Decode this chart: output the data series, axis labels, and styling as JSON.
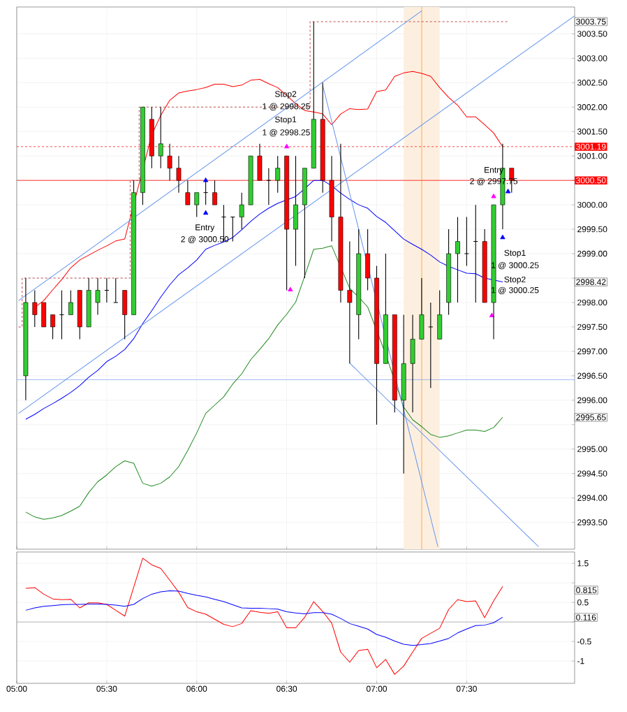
{
  "chart_data": [
    {
      "type": "candlestick",
      "tick_labels": "y",
      "grid": true,
      "xlim": [
        5.0,
        8.1
      ],
      "xticks": [
        {
          "value": 5.0,
          "label": null
        },
        {
          "value": 5.5,
          "label": null
        },
        {
          "value": 6.0,
          "label": null
        },
        {
          "value": 6.5,
          "label": null
        },
        {
          "value": 7.0,
          "label": null
        },
        {
          "value": 7.5,
          "label": null
        }
      ],
      "ylim": [
        2992.95,
        3004.05
      ],
      "yticks": [
        {
          "value": 2993.5,
          "label": "2993.50"
        },
        {
          "value": 2994.0,
          "label": "2994.00"
        },
        {
          "value": 2994.5,
          "label": "2994.50"
        },
        {
          "value": 2995.0,
          "label": "2995.00"
        },
        {
          "value": 2995.5,
          "label": null
        },
        {
          "value": 2996.0,
          "label": "2996.00"
        },
        {
          "value": 2996.5,
          "label": "2996.50"
        },
        {
          "value": 2997.0,
          "label": "2997.00"
        },
        {
          "value": 2997.5,
          "label": "2997.50"
        },
        {
          "value": 2998.0,
          "label": "2998.00"
        },
        {
          "value": 2998.5,
          "label": null
        },
        {
          "value": 2999.0,
          "label": "2999.00"
        },
        {
          "value": 2999.5,
          "label": "2999.50"
        },
        {
          "value": 3000.0,
          "label": "3000.00"
        },
        {
          "value": 3000.5,
          "label": null
        },
        {
          "value": 3001.0,
          "label": "3001.00"
        },
        {
          "value": 3001.5,
          "label": "3001.50"
        },
        {
          "value": 3002.0,
          "label": "3002.00"
        },
        {
          "value": 3002.5,
          "label": "3002.50"
        },
        {
          "value": 3003.0,
          "label": "3003.00"
        },
        {
          "value": 3003.5,
          "label": "3003.50"
        }
      ],
      "x": [
        5.05,
        5.1,
        5.15,
        5.2,
        5.25,
        5.3,
        5.35,
        5.4,
        5.45,
        5.5,
        5.55,
        5.6,
        5.65,
        5.7,
        5.75,
        5.8,
        5.85,
        5.9,
        5.95,
        6.0,
        6.05,
        6.1,
        6.15,
        6.2,
        6.25,
        6.3,
        6.35,
        6.4,
        6.45,
        6.5,
        6.55,
        6.6,
        6.65,
        6.7,
        6.75,
        6.8,
        6.85,
        6.9,
        6.95,
        7.0,
        7.05,
        7.1,
        7.15,
        7.2,
        7.25,
        7.3,
        7.35,
        7.4,
        7.45,
        7.5,
        7.55,
        7.6,
        7.65,
        7.7,
        7.75
      ],
      "ohlc": [
        [
          2996.5,
          2998.5,
          2996.0,
          2998.0
        ],
        [
          2998.0,
          2998.25,
          2997.5,
          2997.75
        ],
        [
          2998.0,
          2998.0,
          2997.5,
          2997.5
        ],
        [
          2997.75,
          2997.75,
          2997.25,
          2997.5
        ],
        [
          2997.75,
          2998.25,
          2997.25,
          2997.75
        ],
        [
          2997.75,
          2998.25,
          2997.75,
          2998.0
        ],
        [
          2998.25,
          2998.25,
          2997.25,
          2997.5
        ],
        [
          2997.5,
          2998.5,
          2997.5,
          2998.25
        ],
        [
          2998.0,
          2998.5,
          2997.75,
          2998.25
        ],
        [
          2998.25,
          2998.5,
          2998.0,
          2998.25
        ],
        [
          2998.0,
          2998.5,
          2998.0,
          2998.0
        ],
        [
          2998.25,
          2998.25,
          2997.25,
          2997.75
        ],
        [
          2997.75,
          3000.5,
          2997.75,
          3000.25
        ],
        [
          3000.25,
          3002.0,
          3000.0,
          3002.0
        ],
        [
          3001.75,
          3002.0,
          3000.75,
          3001.0
        ],
        [
          3001.0,
          3002.0,
          3000.75,
          3001.25
        ],
        [
          3001.0,
          3001.25,
          3000.5,
          3000.75
        ],
        [
          3000.75,
          3001.0,
          3000.25,
          3000.5
        ],
        [
          3000.25,
          3000.5,
          3000.0,
          3000.0
        ],
        [
          3000.0,
          3000.25,
          2999.75,
          3000.25
        ],
        [
          3000.25,
          3000.5,
          3000.0,
          3000.25
        ],
        [
          3000.25,
          3000.5,
          3000.0,
          3000.0
        ],
        [
          2999.75,
          3000.0,
          2999.25,
          2999.75
        ],
        [
          2999.75,
          2999.75,
          2999.25,
          2999.75
        ],
        [
          2999.75,
          3000.25,
          2999.5,
          3000.0
        ],
        [
          3000.0,
          3001.0,
          3000.0,
          3001.0
        ],
        [
          3001.0,
          3001.25,
          3000.5,
          3000.5
        ],
        [
          3000.5,
          3000.75,
          3000.0,
          3000.5
        ],
        [
          3000.5,
          3001.0,
          3000.25,
          3000.75
        ],
        [
          3001.0,
          3001.0,
          2998.25,
          2999.5
        ],
        [
          2999.5,
          3001.0,
          2998.75,
          3000.0
        ],
        [
          3000.0,
          3000.75,
          2998.5,
          3000.75
        ],
        [
          3000.75,
          3003.75,
          3000.75,
          3001.75
        ],
        [
          3001.75,
          3002.5,
          3000.25,
          3000.5
        ],
        [
          3000.5,
          3001.0,
          2999.25,
          2999.75
        ],
        [
          2999.75,
          3001.25,
          2998.0,
          2998.25
        ],
        [
          2998.25,
          2999.25,
          2996.75,
          2998.0
        ],
        [
          2997.75,
          2999.5,
          2997.25,
          2999.0
        ],
        [
          2999.0,
          2999.5,
          2998.25,
          2998.5
        ],
        [
          2998.5,
          2998.75,
          2995.5,
          2996.75
        ],
        [
          2996.75,
          2999.0,
          2996.75,
          2997.75
        ],
        [
          2997.75,
          2997.75,
          2995.75,
          2996.0
        ],
        [
          2996.0,
          2997.75,
          2994.5,
          2996.75
        ],
        [
          2996.75,
          2997.75,
          2995.75,
          2997.25
        ],
        [
          2997.25,
          2998.5,
          2997.25,
          2997.75
        ],
        [
          2997.5,
          2998.0,
          2996.25,
          2997.5
        ],
        [
          2997.25,
          2998.25,
          2997.25,
          2997.75
        ],
        [
          2998.0,
          2999.5,
          2997.75,
          2999.0
        ],
        [
          2999.0,
          2999.75,
          2998.0,
          2999.25
        ],
        [
          2999.0,
          2999.75,
          2998.75,
          2999.0
        ],
        [
          2999.25,
          3000.0,
          2998.0,
          2999.25
        ],
        [
          2999.25,
          2999.5,
          2998.0,
          2998.0
        ],
        [
          2998.0,
          3000.0,
          2997.25,
          3000.0
        ],
        [
          3000.0,
          3001.25,
          2999.5,
          3000.75
        ],
        [
          3000.75,
          3000.75,
          3000.25,
          3000.5
        ]
      ],
      "colors": [
        "#32cd32",
        "#ff0000",
        "#ff0000",
        "#ff0000",
        "#000000",
        "#32cd32",
        "#ff0000",
        "#32cd32",
        "#32cd32",
        "#000000",
        "#000000",
        "#ff0000",
        "#32cd32",
        "#32cd32",
        "#ff0000",
        "#32cd32",
        "#ff0000",
        "#ff0000",
        "#ff0000",
        "#32cd32",
        "#000000",
        "#ff0000",
        "#000000",
        "#000000",
        "#32cd32",
        "#32cd32",
        "#ff0000",
        "#000000",
        "#32cd32",
        "#ff0000",
        "#32cd32",
        "#32cd32",
        "#32cd32",
        "#ff0000",
        "#ff0000",
        "#ff0000",
        "#ff0000",
        "#32cd32",
        "#ff0000",
        "#ff0000",
        "#32cd32",
        "#ff0000",
        "#32cd32",
        "#32cd32",
        "#32cd32",
        "#000000",
        "#32cd32",
        "#32cd32",
        "#32cd32",
        "#000000",
        "#000000",
        "#ff0000",
        "#32cd32",
        "#32cd32",
        "#ff0000"
      ],
      "series": [
        {
          "type": "line",
          "color": "#ff0000",
          "x": [
            5.1,
            5.15,
            5.2,
            5.25,
            5.3,
            5.35,
            5.4,
            5.45,
            5.5,
            5.55,
            5.6,
            5.75,
            5.8,
            5.85,
            5.9,
            5.95,
            6.0,
            6.05,
            6.1,
            6.15,
            6.2,
            6.25,
            6.3,
            6.35,
            6.4,
            6.45,
            6.5,
            6.55,
            6.6,
            6.65,
            6.7,
            6.75,
            6.8,
            6.85,
            6.9,
            6.95,
            7.0,
            7.05,
            7.1,
            7.15,
            7.2,
            7.25,
            7.3,
            7.35,
            7.4,
            7.45,
            7.5,
            7.55,
            7.6,
            7.65,
            7.7
          ],
          "values": [
            2997.9,
            2998.04,
            2998.26,
            2998.47,
            2998.71,
            2998.87,
            2998.97,
            2999.07,
            2999.16,
            2999.26,
            2999.3,
            3001.43,
            3001.83,
            3002.14,
            3002.29,
            3002.33,
            3002.36,
            3002.4,
            3002.47,
            3002.47,
            3002.42,
            3002.45,
            3002.55,
            3002.57,
            3002.48,
            3002.4,
            3002.24,
            3002.07,
            3001.93,
            3001.9,
            3001.86,
            3001.64,
            3001.86,
            3001.97,
            3001.95,
            3001.96,
            3002.32,
            3002.35,
            3002.63,
            3002.7,
            3002.73,
            3002.69,
            3002.63,
            3002.4,
            3002.2,
            3002.04,
            3001.8,
            3001.8,
            3001.64,
            3001.47,
            3001.19
          ]
        },
        {
          "type": "line",
          "color": "#0000ff",
          "x": [
            5.05,
            5.1,
            5.15,
            5.2,
            5.25,
            5.3,
            5.35,
            5.4,
            5.45,
            5.5,
            5.55,
            5.6,
            5.65,
            5.7,
            5.75,
            5.8,
            5.85,
            5.9,
            5.95,
            6.0,
            6.05,
            6.1,
            6.15,
            6.2,
            6.25,
            6.3,
            6.35,
            6.4,
            6.45,
            6.5,
            6.55,
            6.6,
            6.65,
            6.7,
            6.75,
            6.8,
            6.85,
            6.9,
            6.95,
            7.0,
            7.05,
            7.1,
            7.15,
            7.2,
            7.25,
            7.3,
            7.35,
            7.4,
            7.45,
            7.5,
            7.55,
            7.6,
            7.7
          ],
          "values": [
            2995.61,
            2995.71,
            2995.83,
            2995.93,
            2996.04,
            2996.16,
            2996.3,
            2996.47,
            2996.61,
            2996.79,
            2996.9,
            2997.04,
            2997.26,
            2997.57,
            2997.83,
            2998.11,
            2998.36,
            2998.57,
            2998.71,
            2998.87,
            2999.09,
            2999.17,
            2999.24,
            2999.33,
            2999.49,
            2999.66,
            2999.81,
            2999.93,
            3000.03,
            3000.1,
            3000.17,
            3000.33,
            3000.5,
            3000.5,
            3000.39,
            3000.24,
            3000.11,
            3000.0,
            2999.93,
            2999.76,
            2999.64,
            2999.47,
            2999.3,
            2999.19,
            2999.09,
            2998.97,
            2998.83,
            2998.74,
            2998.67,
            2998.6,
            2998.59,
            2998.5,
            2998.42
          ]
        },
        {
          "type": "line",
          "color": "#228b22",
          "x": [
            5.05,
            5.1,
            5.15,
            5.2,
            5.25,
            5.3,
            5.35,
            5.4,
            5.45,
            5.5,
            5.55,
            5.6,
            5.65,
            5.7,
            5.75,
            5.8,
            5.85,
            5.9,
            5.95,
            6.0,
            6.05,
            6.1,
            6.15,
            6.2,
            6.25,
            6.3,
            6.35,
            6.4,
            6.45,
            6.5,
            6.55,
            6.6,
            6.65,
            6.7,
            6.75,
            6.85,
            6.9,
            6.95,
            7.05,
            7.15,
            7.2,
            7.25,
            7.3,
            7.35,
            7.4,
            7.45,
            7.5,
            7.55,
            7.6,
            7.65,
            7.7
          ],
          "values": [
            2993.71,
            2993.61,
            2993.56,
            2993.59,
            2993.64,
            2993.73,
            2993.83,
            2994.11,
            2994.33,
            2994.47,
            2994.64,
            2994.76,
            2994.71,
            2994.3,
            2994.24,
            2994.3,
            2994.43,
            2994.64,
            2994.97,
            2995.33,
            2995.73,
            2995.9,
            2996.07,
            2996.33,
            2996.54,
            2996.83,
            2997.04,
            2997.26,
            2997.54,
            2997.76,
            2998.01,
            2998.54,
            2999.09,
            2999.11,
            2999.16,
            2998.29,
            2998.11,
            2997.91,
            2996.94,
            2995.86,
            2995.6,
            2995.46,
            2995.3,
            2995.24,
            2995.27,
            2995.33,
            2995.39,
            2995.39,
            2995.36,
            2995.44,
            2995.65
          ]
        },
        {
          "type": "step",
          "color": "#c0504d",
          "line_style": "dashed",
          "x": [
            5.01,
            5.03,
            5.63,
            5.68,
            6.63,
            7.73
          ],
          "values": [
            2997.5,
            2998.5,
            3000.5,
            3002.0,
            3003.75,
            3003.75
          ]
        },
        {
          "type": "line",
          "color": "#6495ed",
          "x": [
            5.01,
            7.25
          ],
          "values": [
            2998.04,
            3003.97
          ]
        },
        {
          "type": "line",
          "color": "#6495ed",
          "x": [
            5.01,
            8.1
          ],
          "values": [
            2995.73,
            3003.87
          ]
        },
        {
          "type": "line",
          "color": "#6495ed",
          "x": [
            6.7,
            7.34
          ],
          "values": [
            3002.45,
            2993.0
          ]
        },
        {
          "type": "line",
          "color": "#6495ed",
          "x": [
            6.85,
            7.9
          ],
          "values": [
            2996.76,
            2993.0
          ]
        },
        {
          "type": "scatter",
          "color": "#0000ff",
          "marker": "triangle",
          "x": [
            6.05,
            6.05,
            7.7,
            7.73
          ],
          "values": [
            2999.83,
            3000.5,
            2999.33,
            3000.27
          ]
        },
        {
          "type": "scatter",
          "color": "#ff00ff",
          "marker": "triangle",
          "x": [
            6.5,
            6.52,
            7.65,
            7.64
          ],
          "values": [
            3001.19,
            2998.26,
            3000.17,
            2997.73
          ]
        }
      ],
      "ref_lines": [
        {
          "axis": "y",
          "value": 3001.19,
          "label": "3001.19",
          "color": "#ff0000",
          "line_style": "dashed"
        },
        {
          "axis": "y",
          "value": 3000.5,
          "label": "3000.50",
          "color": "#ff0000",
          "line_style": "solid"
        },
        {
          "axis": "y",
          "value": 2996.42,
          "color": "#87a9ee",
          "line_style": "solid"
        },
        {
          "axis": "x",
          "value": 7.25,
          "color": "#ff8c00",
          "line_style": "solid"
        }
      ],
      "bands": [
        {
          "axis": "x",
          "from": 7.15,
          "to": 7.35,
          "color": "#fdefe0"
        }
      ],
      "annotations": [
        "Stop2",
        "1 @ 2998.25",
        "Stop1",
        "1 @ 2998.25",
        "Entry",
        "2 @ 3000.50",
        "Entry",
        "2 @ 2997.75",
        "Stop1",
        "1 @ 3000.25",
        "Stop2",
        "1 @ 3000.25",
        "3003.75",
        "2998.42",
        "2995.65"
      ]
    },
    {
      "type": "line",
      "grid": true,
      "xlim": [
        5.0,
        8.1
      ],
      "xticks": [
        {
          "value": 5.0,
          "label": "05:00"
        },
        {
          "value": 5.5,
          "label": "05:30"
        },
        {
          "value": 6.0,
          "label": "06:00"
        },
        {
          "value": 6.5,
          "label": "06:30"
        },
        {
          "value": 7.0,
          "label": "07:00"
        },
        {
          "value": 7.5,
          "label": "07:30"
        }
      ],
      "ylim": [
        -1.57,
        1.79
      ],
      "yticks": [
        -1,
        -0.5,
        {
          "value": 0,
          "label": null
        },
        0.5,
        {
          "value": 1,
          "label": null
        },
        1.5
      ],
      "series": [
        {
          "color": "#ff0000",
          "x": [
            5.05,
            5.1,
            5.15,
            5.2,
            5.25,
            5.3,
            5.35,
            5.4,
            5.45,
            5.5,
            5.55,
            5.6,
            5.65,
            5.7,
            5.75,
            5.8,
            5.85,
            5.9,
            5.95,
            6.0,
            6.05,
            6.1,
            6.15,
            6.2,
            6.25,
            6.3,
            6.35,
            6.4,
            6.45,
            6.5,
            6.55,
            6.6,
            6.65,
            6.7,
            6.75,
            6.8,
            6.85,
            6.9,
            6.95,
            7.0,
            7.05,
            7.1,
            7.15,
            7.2,
            7.25,
            7.3,
            7.35,
            7.4,
            7.45,
            7.5,
            7.55,
            7.6,
            7.65,
            7.7
          ],
          "values": [
            0.86,
            0.88,
            0.71,
            0.59,
            0.57,
            0.58,
            0.36,
            0.49,
            0.49,
            0.45,
            0.3,
            0.15,
            0.89,
            1.63,
            1.46,
            1.37,
            1.07,
            0.76,
            0.37,
            0.26,
            0.2,
            0.07,
            -0.06,
            -0.12,
            -0.04,
            0.29,
            0.25,
            0.22,
            0.26,
            -0.15,
            -0.15,
            0.12,
            0.52,
            0.27,
            -0.03,
            -0.77,
            -1.03,
            -0.73,
            -0.7,
            -1.17,
            -0.96,
            -1.34,
            -1.13,
            -0.77,
            -0.42,
            -0.29,
            -0.16,
            0.32,
            0.57,
            0.52,
            0.54,
            0.11,
            0.54,
            0.91
          ]
        },
        {
          "color": "#0000ff",
          "x": [
            5.05,
            5.1,
            5.15,
            5.2,
            5.25,
            5.3,
            5.35,
            5.4,
            5.45,
            5.5,
            5.55,
            5.6,
            5.65,
            5.7,
            5.75,
            5.8,
            5.85,
            5.9,
            5.95,
            6.0,
            6.05,
            6.1,
            6.15,
            6.2,
            6.25,
            6.3,
            6.35,
            6.4,
            6.45,
            6.5,
            6.55,
            6.6,
            6.65,
            6.7,
            6.75,
            6.8,
            6.85,
            6.9,
            6.95,
            7.0,
            7.05,
            7.1,
            7.15,
            7.2,
            7.25,
            7.3,
            7.35,
            7.4,
            7.45,
            7.5,
            7.55,
            7.6,
            7.65,
            7.7
          ],
          "values": [
            0.3,
            0.36,
            0.4,
            0.42,
            0.44,
            0.45,
            0.45,
            0.46,
            0.46,
            0.45,
            0.43,
            0.4,
            0.45,
            0.6,
            0.71,
            0.77,
            0.8,
            0.79,
            0.73,
            0.68,
            0.64,
            0.58,
            0.52,
            0.44,
            0.36,
            0.35,
            0.35,
            0.34,
            0.33,
            0.26,
            0.23,
            0.21,
            0.24,
            0.24,
            0.2,
            0.09,
            -0.04,
            -0.11,
            -0.18,
            -0.32,
            -0.39,
            -0.49,
            -0.57,
            -0.6,
            -0.58,
            -0.55,
            -0.49,
            -0.42,
            -0.28,
            -0.18,
            -0.09,
            -0.08,
            -0.02,
            0.12
          ]
        }
      ],
      "ref_lines": [
        {
          "axis": "y",
          "value": 0,
          "color": "#a0a0a0",
          "line_style": "solid"
        }
      ],
      "annotations": [
        "0.815",
        "0.116"
      ]
    }
  ]
}
